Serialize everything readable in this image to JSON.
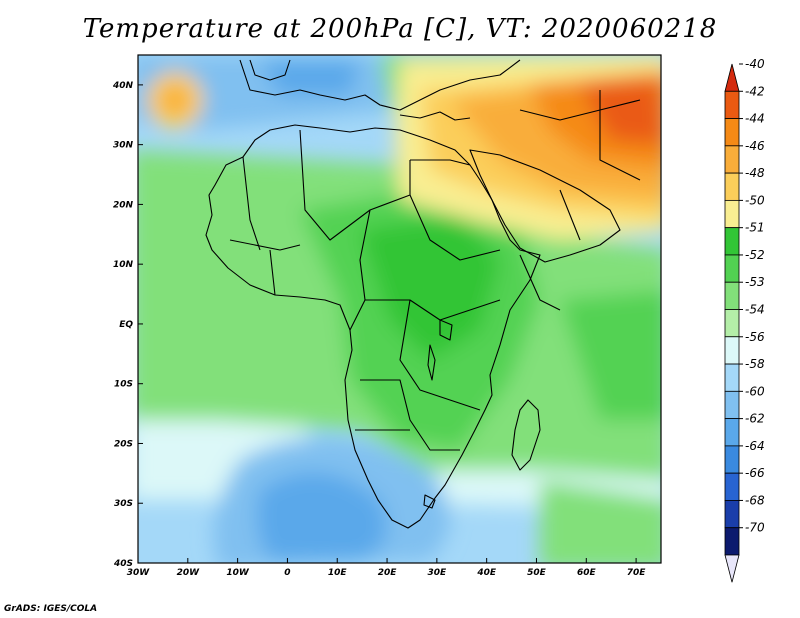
{
  "title": "Temperature at 200hPa [C], VT: 2020060218",
  "credit": "GrADS: IGES/COLA",
  "map": {
    "lon_range": [
      -30,
      75
    ],
    "lat_range": [
      -40,
      45
    ],
    "lon_ticks": [
      {
        "value": -30,
        "label": "30W"
      },
      {
        "value": -20,
        "label": "20W"
      },
      {
        "value": -10,
        "label": "10W"
      },
      {
        "value": 0,
        "label": "0"
      },
      {
        "value": 10,
        "label": "10E"
      },
      {
        "value": 20,
        "label": "20E"
      },
      {
        "value": 30,
        "label": "30E"
      },
      {
        "value": 40,
        "label": "40E"
      },
      {
        "value": 50,
        "label": "50E"
      },
      {
        "value": 60,
        "label": "60E"
      },
      {
        "value": 70,
        "label": "70E"
      }
    ],
    "lat_ticks": [
      {
        "value": 40,
        "label": "40N"
      },
      {
        "value": 30,
        "label": "30N"
      },
      {
        "value": 20,
        "label": "20N"
      },
      {
        "value": 10,
        "label": "10N"
      },
      {
        "value": 0,
        "label": "EQ"
      },
      {
        "value": -10,
        "label": "10S"
      },
      {
        "value": -20,
        "label": "20S"
      },
      {
        "value": -30,
        "label": "30S"
      },
      {
        "value": -40,
        "label": "40S"
      }
    ]
  },
  "colorbar": {
    "labels": [
      "-40",
      "-42",
      "-44",
      "-46",
      "-48",
      "-50",
      "-51",
      "-52",
      "-53",
      "-54",
      "-56",
      "-58",
      "-60",
      "-62",
      "-64",
      "-66",
      "-68",
      "-70"
    ],
    "colors": [
      "#d42a0e",
      "#ea5a12",
      "#f58a16",
      "#f9ad3a",
      "#fbce5a",
      "#f9ee92",
      "#32c536",
      "#52d252",
      "#82e07a",
      "#b4eea8",
      "#dcf8f8",
      "#a4d8f8",
      "#80c0f0",
      "#5aa8ea",
      "#3a8ae0",
      "#2864d2",
      "#1a3eaa",
      "#0c1a6e"
    ]
  }
}
